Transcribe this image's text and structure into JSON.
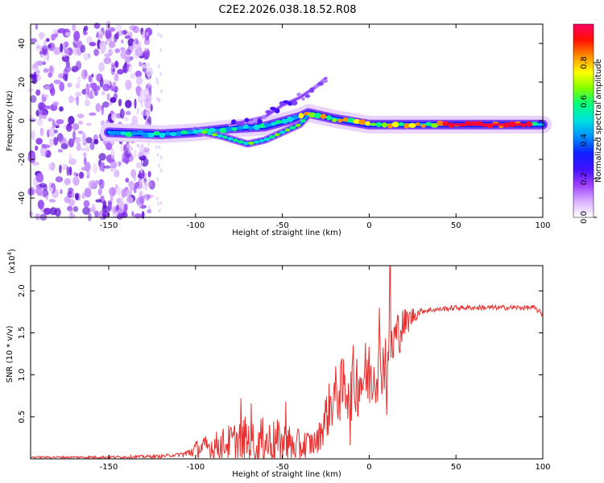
{
  "title": "C2E2.2026.038.18.52.R08",
  "chart_data": [
    {
      "type": "heatmap",
      "name": "spectrogram",
      "xlabel": "Height of straight line (km)",
      "ylabel": "Frequency (Hz)",
      "xlim": [
        -195,
        100
      ],
      "ylim": [
        -50,
        50
      ],
      "xticks": [
        -150,
        -100,
        -50,
        0,
        50,
        100
      ],
      "yticks": [
        -40,
        -20,
        0,
        20,
        40
      ],
      "colorbar": {
        "label": "Normalized spectral amplitude",
        "range": [
          0,
          1
        ],
        "ticks": [
          0.0,
          0.2,
          0.4,
          0.6,
          0.8
        ],
        "colors": [
          "#ffffff",
          "#d8b0ff",
          "#a040ff",
          "#4010ff",
          "#1020ff",
          "#0090ff",
          "#00e0e0",
          "#00ff80",
          "#80ff00",
          "#ffff00",
          "#ff9000",
          "#ff1000",
          "#ff0060"
        ]
      },
      "traces": [
        {
          "name": "main-trace",
          "x": [
            -150,
            -120,
            -100,
            -80,
            -60,
            -40,
            -35,
            -20,
            0,
            20,
            50,
            75,
            100
          ],
          "y": [
            -6,
            -7,
            -6,
            -4,
            -3,
            2,
            4,
            1,
            -2,
            -2,
            -2,
            -2,
            -2
          ]
        },
        {
          "name": "lower-branch",
          "x": [
            -100,
            -85,
            -70,
            -60,
            -50,
            -40,
            -35
          ],
          "y": [
            -5,
            -8,
            -12,
            -10,
            -6,
            -2,
            3
          ]
        },
        {
          "name": "upper-branch",
          "x": [
            -80,
            -60,
            -50,
            -40,
            -30,
            -25
          ],
          "y": [
            -2,
            2,
            8,
            12,
            18,
            22
          ]
        }
      ],
      "noise_region": {
        "x_from": -195,
        "x_to": -125
      }
    },
    {
      "type": "line",
      "name": "snr",
      "xlabel": "Height of straight line (km)",
      "ylabel": "SNR (10 * v/v)",
      "y_multiplier": "(x10",
      "y_multiplier_exp": "4",
      "y_multiplier_close": ")",
      "xlim": [
        -195,
        100
      ],
      "ylim": [
        0,
        2.3
      ],
      "xticks": [
        -150,
        -100,
        -50,
        0,
        50,
        100
      ],
      "yticks": [
        0.5,
        1.0,
        1.5,
        2.0
      ],
      "color": "#e83030",
      "anchors": {
        "x": [
          -195,
          -150,
          -120,
          -105,
          -100,
          -90,
          -80,
          -70,
          -60,
          -50,
          -40,
          -30,
          -25,
          -20,
          -10,
          0,
          10,
          13,
          15,
          20,
          25,
          30,
          50,
          75,
          95,
          100
        ],
        "y": [
          0.02,
          0.02,
          0.03,
          0.06,
          0.12,
          0.15,
          0.2,
          0.22,
          0.2,
          0.18,
          0.15,
          0.2,
          0.5,
          0.75,
          0.9,
          1.0,
          1.2,
          1.3,
          1.45,
          1.6,
          1.7,
          1.76,
          1.8,
          1.8,
          1.8,
          1.72
        ]
      },
      "noise": {
        "x": [
          -195,
          -110,
          -100,
          -80,
          -70,
          -50,
          -40,
          -30,
          -25,
          -10,
          0,
          15,
          20,
          30,
          100
        ],
        "amp": [
          0.01,
          0.02,
          0.1,
          0.22,
          0.3,
          0.28,
          0.2,
          0.15,
          0.3,
          0.45,
          0.45,
          0.35,
          0.2,
          0.03,
          0.03
        ]
      },
      "spikes": [
        {
          "x": -74,
          "y": 0.72
        },
        {
          "x": -68,
          "y": 0.66
        },
        {
          "x": -48,
          "y": 0.68
        },
        {
          "x": -12,
          "y": 0.9
        },
        {
          "x": 6,
          "y": 1.8
        },
        {
          "x": 12,
          "y": 2.3
        },
        {
          "x": 10,
          "y": 0.52
        },
        {
          "x": -11,
          "y": 0.16
        }
      ]
    }
  ]
}
